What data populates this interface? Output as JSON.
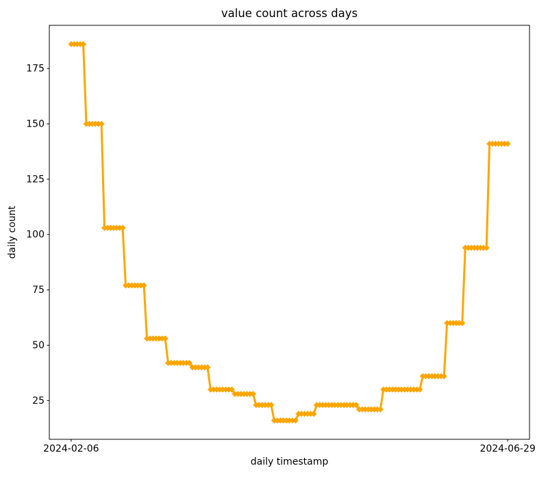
{
  "chart_data": {
    "type": "line",
    "title": "value count across days",
    "xlabel": "daily timestamp",
    "ylabel": "daily count",
    "line_color": "#FFA500",
    "marker_style": "diamond",
    "background_color": "#FFFFFF",
    "grid": false,
    "legend": null,
    "x_start_date": "2024-02-06",
    "x_tick_labels": [
      "2024-02-06",
      "2024-06-29"
    ],
    "y_ticks": [
      25,
      50,
      75,
      100,
      125,
      150,
      175
    ],
    "ylim": [
      7.5,
      194.5
    ],
    "xlim_days": [
      -7.2,
      151.2
    ],
    "series_note": "daily counts, consecutive days form flat runs",
    "runs": [
      {
        "value": 186,
        "start": "2024-02-06",
        "days": 5
      },
      {
        "value": 150,
        "start": "2024-02-11",
        "days": 6
      },
      {
        "value": 103,
        "start": "2024-02-17",
        "days": 7
      },
      {
        "value": 77,
        "start": "2024-02-24",
        "days": 7
      },
      {
        "value": 53,
        "start": "2024-03-02",
        "days": 7
      },
      {
        "value": 42,
        "start": "2024-03-09",
        "days": 8
      },
      {
        "value": 40,
        "start": "2024-03-17",
        "days": 6
      },
      {
        "value": 30,
        "start": "2024-03-23",
        "days": 8
      },
      {
        "value": 28,
        "start": "2024-03-31",
        "days": 7
      },
      {
        "value": 23,
        "start": "2024-04-07",
        "days": 6
      },
      {
        "value": 16,
        "start": "2024-04-13",
        "days": 8
      },
      {
        "value": 19,
        "start": "2024-04-21",
        "days": 6
      },
      {
        "value": 23,
        "start": "2024-04-27",
        "days": 14
      },
      {
        "value": 21,
        "start": "2024-05-11",
        "days": 8
      },
      {
        "value": 30,
        "start": "2024-05-19",
        "days": 13
      },
      {
        "value": 36,
        "start": "2024-06-01",
        "days": 8
      },
      {
        "value": 60,
        "start": "2024-06-09",
        "days": 6
      },
      {
        "value": 94,
        "start": "2024-06-15",
        "days": 8
      },
      {
        "value": 141,
        "start": "2024-06-23",
        "days": 7
      }
    ]
  }
}
